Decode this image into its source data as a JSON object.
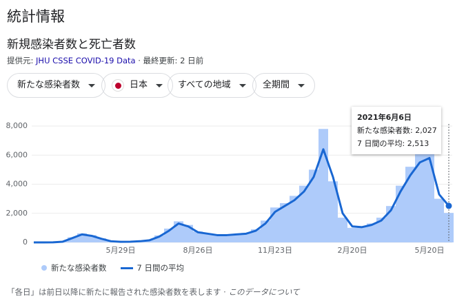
{
  "page_title": "統計情報",
  "chart_data": {
    "type": "bar_line",
    "title": "新規感染者数と死亡者数",
    "categories": [
      null,
      null,
      null,
      null,
      null,
      null,
      null,
      null,
      null,
      "5月29日",
      null,
      null,
      null,
      null,
      null,
      null,
      null,
      "8月26日",
      null,
      null,
      null,
      null,
      null,
      null,
      null,
      "11月23日",
      null,
      null,
      null,
      null,
      null,
      null,
      null,
      "2月20日",
      null,
      null,
      null,
      null,
      null,
      null,
      null,
      "5月20日",
      null,
      null
    ],
    "series": [
      {
        "name": "新たな感染者数",
        "type": "bar",
        "color": "#aecbfa",
        "values": [
          0,
          0,
          10,
          80,
          350,
          620,
          500,
          280,
          90,
          50,
          60,
          90,
          180,
          480,
          950,
          1450,
          1200,
          750,
          620,
          520,
          520,
          580,
          650,
          900,
          1500,
          2400,
          2700,
          3200,
          3900,
          5000,
          7800,
          4200,
          1700,
          1000,
          1100,
          1300,
          1700,
          2500,
          3900,
          5200,
          6300,
          6800,
          3000,
          2027
        ]
      },
      {
        "name": "7 日間の平均",
        "type": "line",
        "color": "#1967d2",
        "values": [
          0,
          0,
          5,
          50,
          300,
          550,
          450,
          250,
          80,
          40,
          50,
          80,
          150,
          400,
          800,
          1300,
          1100,
          700,
          600,
          500,
          500,
          550,
          600,
          800,
          1300,
          2100,
          2500,
          2900,
          3500,
          4500,
          6400,
          4500,
          2000,
          1100,
          1050,
          1200,
          1500,
          2200,
          3500,
          4600,
          5500,
          5800,
          3300,
          2513
        ]
      }
    ],
    "ylim": [
      0,
      8000
    ],
    "yticks": [
      0,
      {
        "value": 2000,
        "label": "2,000"
      },
      {
        "value": 4000,
        "label": "4,000"
      },
      {
        "value": 6000,
        "label": "6,000"
      },
      {
        "value": 8000,
        "label": "8,000"
      }
    ]
  },
  "source": {
    "prefix": "提供元:",
    "link": "JHU CSSE COVID-19 Data",
    "suffix": "· 最終更新: 2 日前"
  },
  "filters": [
    "新たな感染者数",
    "日本",
    "すべての地域",
    "全期間"
  ],
  "tooltip": {
    "date": "2021年6月6日",
    "rows": [
      "新たな感染者数: 2,027",
      "7 日間の平均: 2,513"
    ]
  },
  "footnote": {
    "text": "「各日」は前日以降に新たに報告された感染者数を表します ·",
    "link": "このデータについて"
  }
}
